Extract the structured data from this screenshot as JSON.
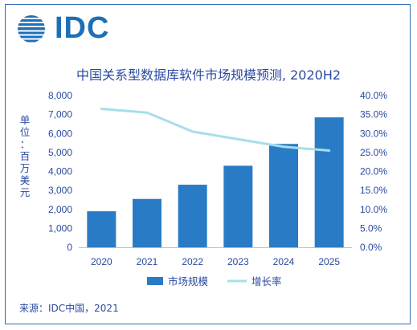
{
  "logo": {
    "text": "IDC"
  },
  "title": "中国关系型数据库软件市场规模预测, 2020H2",
  "source": "来源：IDC中国，2021",
  "chart_data": {
    "type": "bar",
    "title": "中国关系型数据库软件市场规模预测, 2020H2",
    "ylabel": "单位：百万美元",
    "categories": [
      "2020",
      "2021",
      "2022",
      "2023",
      "2024",
      "2025"
    ],
    "series": [
      {
        "name": "市场规模",
        "type": "bar",
        "axis": "left",
        "color": "#2a7bc6",
        "values": [
          1900,
          2550,
          3300,
          4300,
          5450,
          6850
        ]
      },
      {
        "name": "增长率",
        "type": "line",
        "axis": "right",
        "color": "#a6dfe9",
        "values": [
          36.5,
          35.5,
          30.5,
          28.5,
          26.5,
          25.5
        ]
      }
    ],
    "ylim": [
      0,
      8000
    ],
    "yticks": [
      "0",
      "1,000",
      "2,000",
      "3,000",
      "4,000",
      "5,000",
      "6,000",
      "7,000",
      "8,000"
    ],
    "y2lim": [
      0,
      40
    ],
    "y2ticks": [
      "0.0%",
      "5.0%",
      "10.0%",
      "15.0%",
      "20.0%",
      "25.0%",
      "30.0%",
      "35.0%",
      "40.0%"
    ],
    "grid": false,
    "legend": "bottom-center"
  }
}
